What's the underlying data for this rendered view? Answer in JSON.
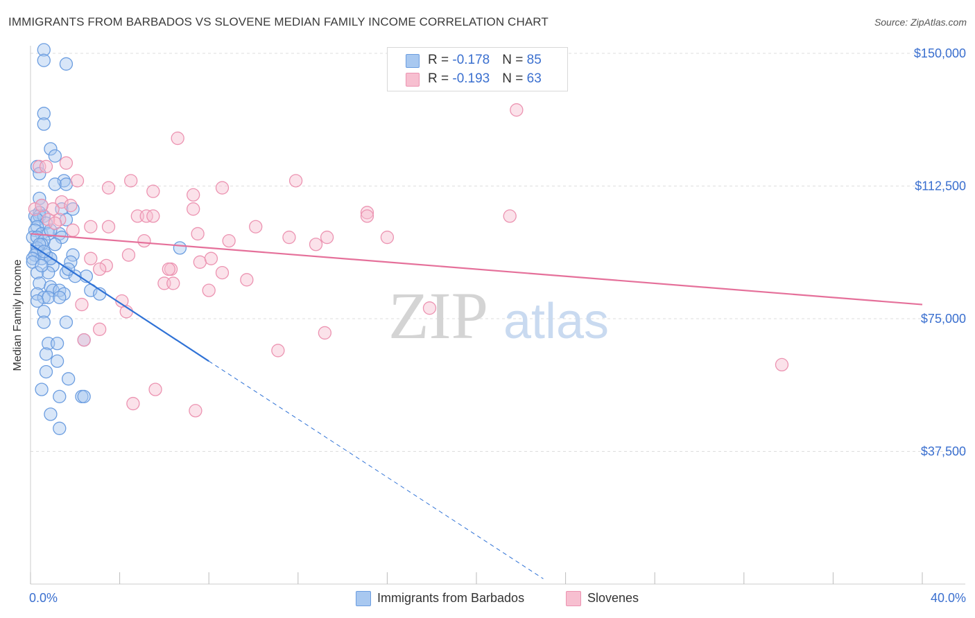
{
  "title": "IMMIGRANTS FROM BARBADOS VS SLOVENE MEDIAN FAMILY INCOME CORRELATION CHART",
  "source": "Source: ZipAtlas.com",
  "watermark": {
    "zip": "ZIP",
    "atlas": "atlas"
  },
  "legend_top": {
    "rows": [
      {
        "r_label": "R = ",
        "r_value": "-0.178",
        "n_label": "N = ",
        "n_value": "85"
      },
      {
        "r_label": "R = ",
        "r_value": "-0.193",
        "n_label": "N = ",
        "n_value": "63"
      }
    ]
  },
  "legend_bottom": [
    "Immigrants from Barbados",
    "Slovenes"
  ],
  "colors": {
    "blue_fill": "#a8c8f0",
    "blue_stroke": "#6b9de0",
    "blue_line": "#2f72d6",
    "pink_fill": "#f7bfd0",
    "pink_stroke": "#ec93b1",
    "pink_line": "#e5709a",
    "tick_text": "#3a6fcf",
    "grid": "#dddddd"
  },
  "chart_data": {
    "type": "scatter",
    "title": "IMMIGRANTS FROM BARBADOS VS SLOVENE MEDIAN FAMILY INCOME CORRELATION CHART",
    "xlabel": "",
    "ylabel": "Median Family Income",
    "xlim": [
      0,
      40
    ],
    "ylim": [
      0,
      155000
    ],
    "x_tick_labels": [
      "0.0%",
      "40.0%"
    ],
    "y_ticks": [
      37500,
      75000,
      112500,
      150000
    ],
    "y_tick_labels": [
      "$37,500",
      "$75,000",
      "$112,500",
      "$150,000"
    ],
    "grid": true,
    "series": [
      {
        "name": "Immigrants from Barbados",
        "R": -0.178,
        "N": 85,
        "trend": {
          "x0": 0.0,
          "y0": 96000,
          "x1": 8.0,
          "y1": 63000,
          "dash_to_x": 23.0,
          "dash_to_y": 1500
        },
        "points": [
          [
            0.6,
            151000
          ],
          [
            0.6,
            148000
          ],
          [
            1.6,
            147000
          ],
          [
            0.6,
            133000
          ],
          [
            0.6,
            130000
          ],
          [
            0.9,
            123000
          ],
          [
            1.1,
            121000
          ],
          [
            0.3,
            118000
          ],
          [
            0.4,
            116000
          ],
          [
            1.5,
            114000
          ],
          [
            1.1,
            113000
          ],
          [
            1.6,
            113000
          ],
          [
            0.4,
            109000
          ],
          [
            0.5,
            107000
          ],
          [
            1.4,
            106000
          ],
          [
            1.9,
            106000
          ],
          [
            0.4,
            105000
          ],
          [
            0.2,
            104000
          ],
          [
            0.4,
            104000
          ],
          [
            0.6,
            104000
          ],
          [
            0.3,
            103000
          ],
          [
            0.7,
            102000
          ],
          [
            1.6,
            103000
          ],
          [
            0.3,
            101000
          ],
          [
            0.2,
            100000
          ],
          [
            0.5,
            99000
          ],
          [
            0.8,
            99000
          ],
          [
            1.3,
            99000
          ],
          [
            0.1,
            98000
          ],
          [
            0.3,
            98000
          ],
          [
            1.4,
            98000
          ],
          [
            0.6,
            97000
          ],
          [
            0.5,
            96000
          ],
          [
            0.3,
            95000
          ],
          [
            0.3,
            94000
          ],
          [
            0.7,
            93000
          ],
          [
            0.2,
            93000
          ],
          [
            0.5,
            92000
          ],
          [
            0.1,
            92000
          ],
          [
            0.9,
            92000
          ],
          [
            1.9,
            93000
          ],
          [
            6.7,
            95000
          ],
          [
            0.1,
            91000
          ],
          [
            1.0,
            90000
          ],
          [
            1.8,
            91000
          ],
          [
            0.3,
            88000
          ],
          [
            0.8,
            88000
          ],
          [
            1.6,
            88000
          ],
          [
            2.0,
            87000
          ],
          [
            2.5,
            87000
          ],
          [
            0.4,
            85000
          ],
          [
            0.9,
            84000
          ],
          [
            1.0,
            83000
          ],
          [
            1.3,
            83000
          ],
          [
            0.3,
            82000
          ],
          [
            1.5,
            82000
          ],
          [
            2.7,
            83000
          ],
          [
            3.1,
            82000
          ],
          [
            0.6,
            81000
          ],
          [
            0.8,
            81000
          ],
          [
            1.3,
            81000
          ],
          [
            0.3,
            80000
          ],
          [
            0.6,
            77000
          ],
          [
            0.6,
            74000
          ],
          [
            1.6,
            74000
          ],
          [
            0.8,
            68000
          ],
          [
            1.2,
            68000
          ],
          [
            2.4,
            69000
          ],
          [
            0.7,
            65000
          ],
          [
            1.2,
            63000
          ],
          [
            0.7,
            60000
          ],
          [
            1.7,
            58000
          ],
          [
            0.5,
            55000
          ],
          [
            1.3,
            53000
          ],
          [
            2.3,
            53000
          ],
          [
            2.4,
            53000
          ],
          [
            0.9,
            48000
          ],
          [
            1.3,
            44000
          ],
          [
            0.9,
            92000
          ],
          [
            1.1,
            96000
          ],
          [
            0.4,
            96000
          ],
          [
            0.9,
            100000
          ],
          [
            0.6,
            94000
          ],
          [
            1.7,
            89000
          ],
          [
            0.5,
            90000
          ]
        ]
      },
      {
        "name": "Slovenes",
        "R": -0.193,
        "N": 63,
        "trend": {
          "x0": 0.0,
          "y0": 99000,
          "x1": 40.0,
          "y1": 79000
        },
        "points": [
          [
            21.8,
            134000
          ],
          [
            6.6,
            126000
          ],
          [
            1.6,
            119000
          ],
          [
            0.4,
            118000
          ],
          [
            0.7,
            118000
          ],
          [
            2.1,
            114000
          ],
          [
            4.5,
            114000
          ],
          [
            11.9,
            114000
          ],
          [
            3.5,
            112000
          ],
          [
            8.6,
            112000
          ],
          [
            5.5,
            111000
          ],
          [
            7.3,
            110000
          ],
          [
            1.4,
            108000
          ],
          [
            1.8,
            107000
          ],
          [
            0.2,
            106000
          ],
          [
            1.0,
            106000
          ],
          [
            7.3,
            106000
          ],
          [
            15.1,
            105000
          ],
          [
            15.1,
            104000
          ],
          [
            21.5,
            104000
          ],
          [
            4.8,
            104000
          ],
          [
            5.2,
            104000
          ],
          [
            5.5,
            104000
          ],
          [
            1.3,
            103000
          ],
          [
            0.8,
            103000
          ],
          [
            1.1,
            102000
          ],
          [
            3.5,
            101000
          ],
          [
            2.7,
            101000
          ],
          [
            10.1,
            101000
          ],
          [
            7.5,
            99000
          ],
          [
            11.6,
            98000
          ],
          [
            13.3,
            98000
          ],
          [
            16.0,
            98000
          ],
          [
            5.1,
            97000
          ],
          [
            8.9,
            97000
          ],
          [
            12.8,
            96000
          ],
          [
            2.7,
            92000
          ],
          [
            4.4,
            93000
          ],
          [
            7.6,
            91000
          ],
          [
            8.1,
            92000
          ],
          [
            3.4,
            90000
          ],
          [
            6.3,
            89000
          ],
          [
            6.2,
            89000
          ],
          [
            3.1,
            89000
          ],
          [
            8.6,
            88000
          ],
          [
            9.7,
            86000
          ],
          [
            6.0,
            85000
          ],
          [
            6.4,
            85000
          ],
          [
            8.0,
            83000
          ],
          [
            4.1,
            80000
          ],
          [
            4.3,
            77000
          ],
          [
            2.3,
            79000
          ],
          [
            17.9,
            78000
          ],
          [
            3.1,
            72000
          ],
          [
            13.2,
            71000
          ],
          [
            2.4,
            69000
          ],
          [
            11.1,
            66000
          ],
          [
            33.7,
            62000
          ],
          [
            5.6,
            55000
          ],
          [
            7.4,
            49000
          ],
          [
            4.6,
            51000
          ],
          [
            0.5,
            107000
          ],
          [
            1.9,
            100000
          ]
        ]
      }
    ]
  }
}
